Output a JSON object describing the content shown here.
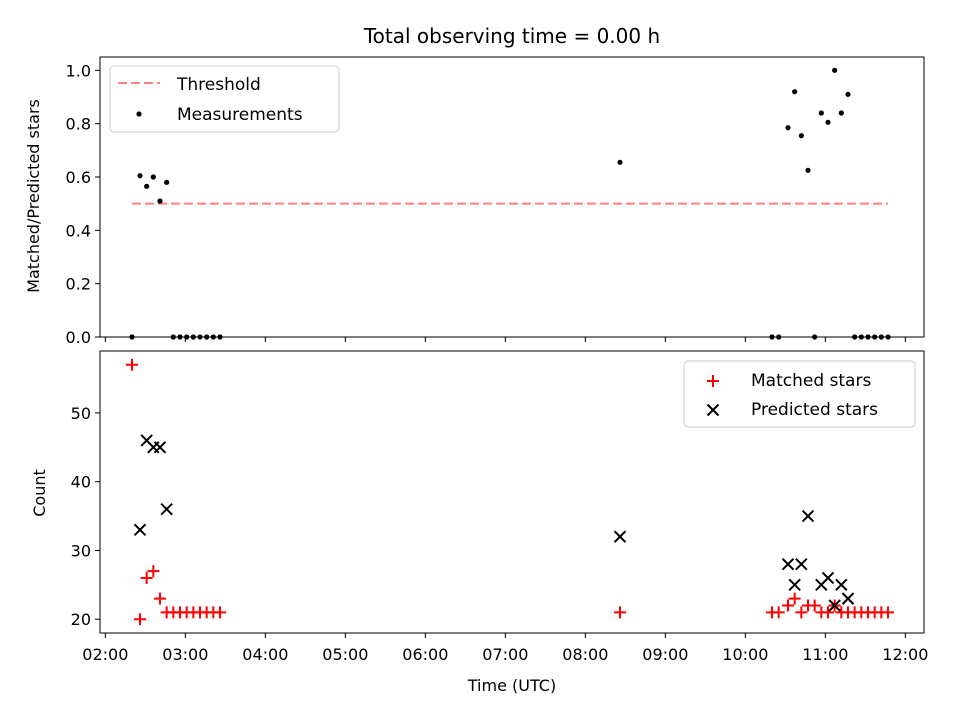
{
  "figure": {
    "title": "Total observing time = 0.00 h",
    "xlabel": "Time (UTC)"
  },
  "chart_data": [
    {
      "type": "scatter",
      "panel": "top",
      "ylabel": "Matched/Predicted stars",
      "xlim": [
        "01:56",
        "12:14"
      ],
      "ylim": [
        0,
        1.05
      ],
      "yticks": [
        0.0,
        0.2,
        0.4,
        0.6,
        0.8,
        1.0
      ],
      "ytick_labels": [
        "0.0",
        "0.2",
        "0.4",
        "0.6",
        "0.8",
        "1.0"
      ],
      "legend_position": "upper-left",
      "threshold": {
        "name": "Threshold",
        "y": 0.5,
        "x_range": [
          "02:20",
          "11:47"
        ],
        "color": "#ff8080"
      },
      "series": [
        {
          "name": "Measurements",
          "color": "#000000",
          "points": [
            [
              "02:20",
              0.0
            ],
            [
              "02:26",
              0.605
            ],
            [
              "02:31",
              0.565
            ],
            [
              "02:36",
              0.6
            ],
            [
              "02:41",
              0.51
            ],
            [
              "02:46",
              0.58
            ],
            [
              "02:51",
              0.0
            ],
            [
              "02:56",
              0.0
            ],
            [
              "03:01",
              0.0
            ],
            [
              "03:06",
              0.0
            ],
            [
              "03:11",
              0.0
            ],
            [
              "03:16",
              0.0
            ],
            [
              "03:21",
              0.0
            ],
            [
              "03:26",
              0.0
            ],
            [
              "08:26",
              0.655
            ],
            [
              "10:20",
              0.0
            ],
            [
              "10:25",
              0.0
            ],
            [
              "10:32",
              0.785
            ],
            [
              "10:37",
              0.92
            ],
            [
              "10:42",
              0.755
            ],
            [
              "10:47",
              0.625
            ],
            [
              "10:52",
              0.0
            ],
            [
              "10:57",
              0.84
            ],
            [
              "11:02",
              0.805
            ],
            [
              "11:07",
              1.0
            ],
            [
              "11:12",
              0.84
            ],
            [
              "11:17",
              0.91
            ],
            [
              "11:22",
              0.0
            ],
            [
              "11:27",
              0.0
            ],
            [
              "11:32",
              0.0
            ],
            [
              "11:37",
              0.0
            ],
            [
              "11:42",
              0.0
            ],
            [
              "11:47",
              0.0
            ]
          ]
        }
      ]
    },
    {
      "type": "scatter",
      "panel": "bottom",
      "ylabel": "Count",
      "xlim": [
        "01:56",
        "12:14"
      ],
      "ylim": [
        18,
        59
      ],
      "yticks": [
        20,
        30,
        40,
        50
      ],
      "ytick_labels": [
        "20",
        "30",
        "40",
        "50"
      ],
      "xticks": [
        "02:00",
        "03:00",
        "04:00",
        "05:00",
        "06:00",
        "07:00",
        "08:00",
        "09:00",
        "10:00",
        "11:00",
        "12:00"
      ],
      "legend_position": "upper-right",
      "series": [
        {
          "name": "Matched stars",
          "color": "#ff0000",
          "marker": "plus",
          "points": [
            [
              "02:20",
              57
            ],
            [
              "02:26",
              20
            ],
            [
              "02:31",
              26
            ],
            [
              "02:36",
              27
            ],
            [
              "02:41",
              23
            ],
            [
              "02:46",
              21
            ],
            [
              "02:51",
              21
            ],
            [
              "02:56",
              21
            ],
            [
              "03:01",
              21
            ],
            [
              "03:06",
              21
            ],
            [
              "03:11",
              21
            ],
            [
              "03:16",
              21
            ],
            [
              "03:21",
              21
            ],
            [
              "03:26",
              21
            ],
            [
              "08:26",
              21
            ],
            [
              "10:20",
              21
            ],
            [
              "10:25",
              21
            ],
            [
              "10:32",
              22
            ],
            [
              "10:37",
              23
            ],
            [
              "10:42",
              21
            ],
            [
              "10:47",
              22
            ],
            [
              "10:52",
              22
            ],
            [
              "10:57",
              21
            ],
            [
              "11:02",
              21
            ],
            [
              "11:07",
              22
            ],
            [
              "11:12",
              21
            ],
            [
              "11:17",
              21
            ],
            [
              "11:22",
              21
            ],
            [
              "11:27",
              21
            ],
            [
              "11:32",
              21
            ],
            [
              "11:37",
              21
            ],
            [
              "11:42",
              21
            ],
            [
              "11:47",
              21
            ]
          ]
        },
        {
          "name": "Predicted stars",
          "color": "#000000",
          "marker": "x",
          "points": [
            [
              "02:26",
              33
            ],
            [
              "02:31",
              46
            ],
            [
              "02:36",
              45
            ],
            [
              "02:41",
              45
            ],
            [
              "02:46",
              36
            ],
            [
              "08:26",
              32
            ],
            [
              "10:32",
              28
            ],
            [
              "10:37",
              25
            ],
            [
              "10:42",
              28
            ],
            [
              "10:47",
              35
            ],
            [
              "10:57",
              25
            ],
            [
              "11:02",
              26
            ],
            [
              "11:07",
              22
            ],
            [
              "11:12",
              25
            ],
            [
              "11:17",
              23
            ]
          ]
        }
      ]
    }
  ]
}
